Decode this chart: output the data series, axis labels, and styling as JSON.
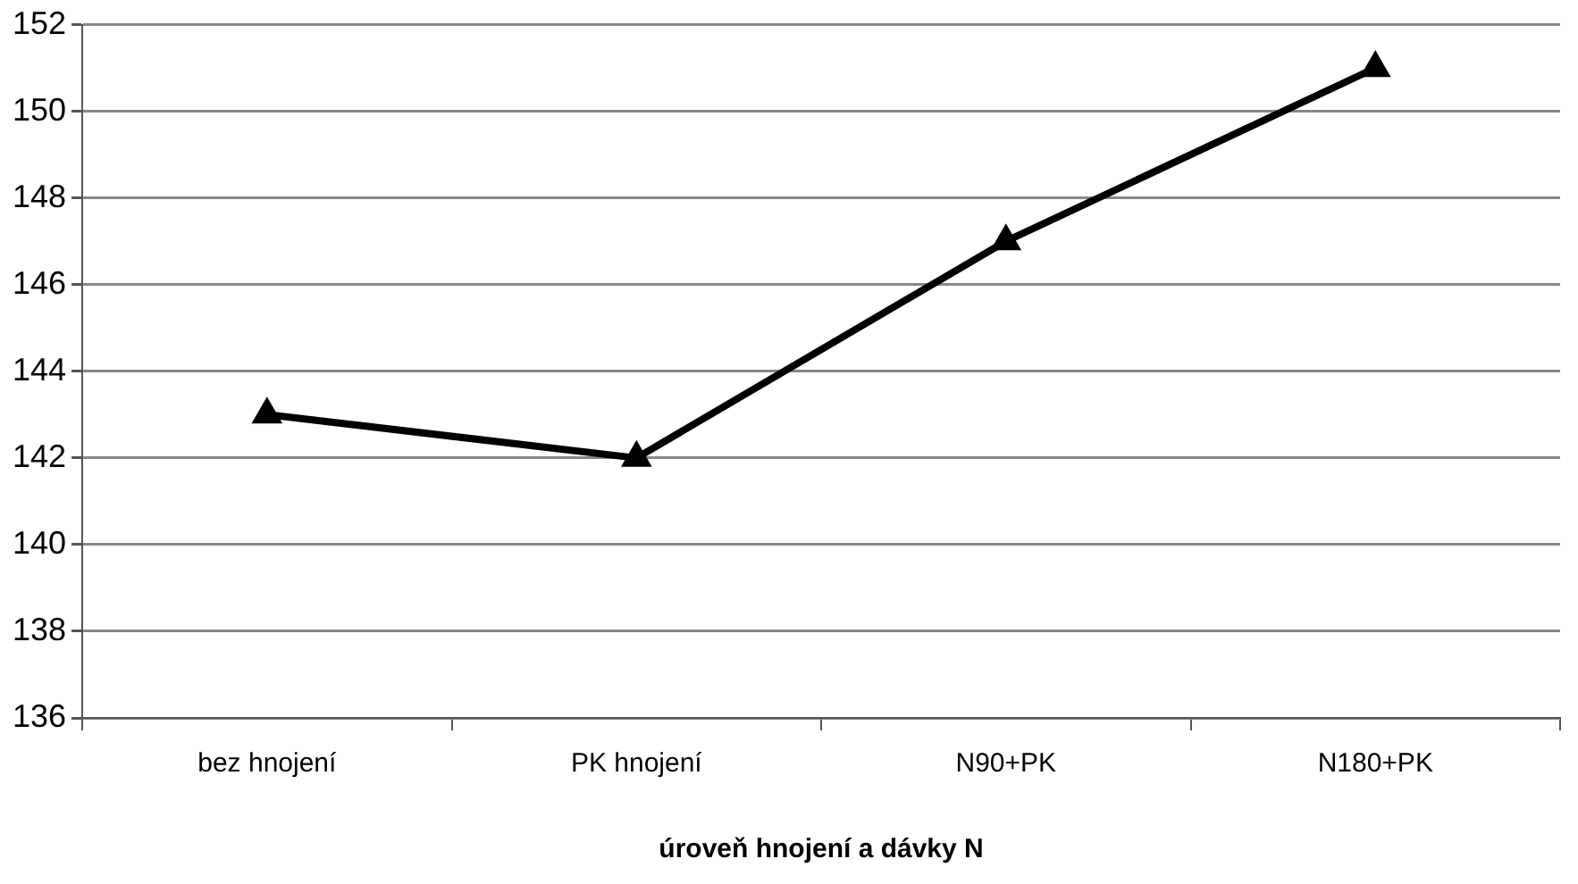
{
  "chart_data": {
    "type": "line",
    "xlabel": "úroveň hnojení a dávky N",
    "categories": [
      "bez hnojení",
      "PK hnojení",
      "N90+PK",
      "N180+PK"
    ],
    "series": [
      {
        "color": "#000000",
        "values": [
          143,
          142,
          147,
          151
        ]
      }
    ],
    "ylim": [
      136,
      152
    ],
    "yticks": [
      136,
      138,
      140,
      142,
      144,
      146,
      148,
      150,
      152
    ],
    "grid": "y",
    "legend": false,
    "marker": "triangle",
    "line_style": "solid"
  }
}
